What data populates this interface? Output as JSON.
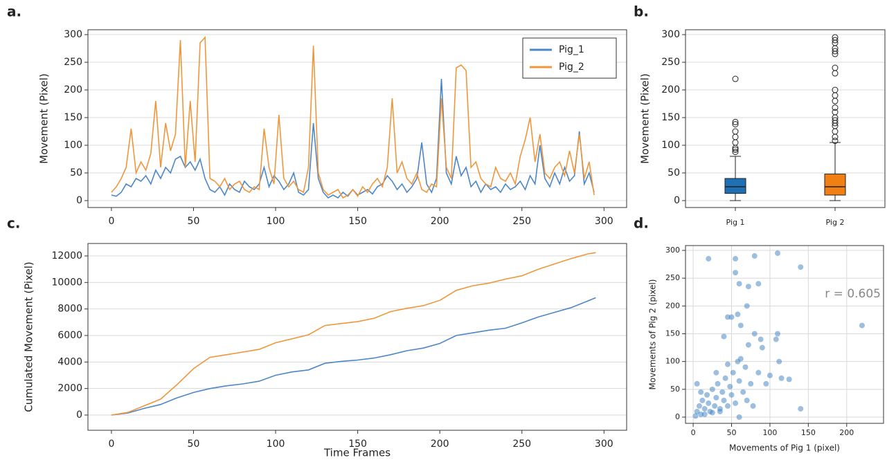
{
  "chart_data": [
    {
      "type": "line",
      "label": "a.",
      "ylabel": "Movement (Pixel)",
      "legend": "upper right",
      "grid": "y",
      "xlim": [
        -14.3,
        313.8
      ],
      "ylim": [
        -12.5,
        308.8
      ],
      "xticks": [
        0,
        50,
        100,
        150,
        200,
        250,
        300
      ],
      "yticks": [
        0,
        50,
        100,
        150,
        200,
        250,
        300
      ],
      "x": [
        0,
        3,
        6,
        9,
        12,
        15,
        18,
        21,
        24,
        27,
        30,
        33,
        36,
        39,
        42,
        45,
        48,
        51,
        54,
        57,
        60,
        63,
        66,
        69,
        72,
        75,
        78,
        81,
        84,
        87,
        90,
        93,
        96,
        99,
        102,
        105,
        108,
        111,
        114,
        117,
        120,
        123,
        126,
        129,
        132,
        135,
        138,
        141,
        144,
        147,
        150,
        153,
        156,
        159,
        162,
        165,
        168,
        171,
        174,
        177,
        180,
        183,
        186,
        189,
        192,
        195,
        198,
        201,
        204,
        207,
        210,
        213,
        216,
        219,
        222,
        225,
        228,
        231,
        234,
        237,
        240,
        243,
        246,
        249,
        252,
        255,
        258,
        261,
        264,
        267,
        270,
        273,
        276,
        279,
        282,
        285,
        288,
        291,
        294
      ],
      "series": [
        {
          "name": "Pig_1",
          "color": "#4a86c8",
          "values": [
            10,
            8,
            15,
            30,
            25,
            40,
            35,
            45,
            30,
            55,
            40,
            60,
            50,
            75,
            80,
            60,
            70,
            55,
            75,
            40,
            20,
            15,
            25,
            10,
            30,
            20,
            15,
            35,
            25,
            20,
            30,
            60,
            25,
            45,
            35,
            20,
            30,
            50,
            15,
            10,
            20,
            140,
            40,
            15,
            5,
            10,
            5,
            15,
            8,
            20,
            10,
            15,
            20,
            12,
            25,
            30,
            45,
            35,
            20,
            30,
            15,
            25,
            40,
            105,
            30,
            15,
            40,
            220,
            50,
            30,
            80,
            45,
            60,
            25,
            35,
            15,
            30,
            20,
            25,
            15,
            30,
            20,
            25,
            35,
            20,
            45,
            30,
            100,
            40,
            25,
            50,
            30,
            60,
            35,
            45,
            125,
            30,
            50,
            15
          ]
        },
        {
          "name": "Pig_2",
          "color": "#f0963a",
          "values": [
            15,
            25,
            40,
            60,
            130,
            50,
            70,
            55,
            85,
            180,
            60,
            140,
            90,
            120,
            290,
            60,
            180,
            70,
            285,
            295,
            40,
            35,
            25,
            40,
            20,
            30,
            35,
            20,
            15,
            25,
            20,
            130,
            60,
            30,
            155,
            40,
            25,
            35,
            20,
            15,
            60,
            280,
            50,
            20,
            10,
            15,
            20,
            5,
            10,
            20,
            8,
            25,
            15,
            30,
            40,
            25,
            60,
            185,
            50,
            70,
            40,
            30,
            50,
            20,
            15,
            30,
            25,
            185,
            60,
            40,
            240,
            245,
            235,
            60,
            70,
            40,
            30,
            25,
            60,
            40,
            35,
            50,
            30,
            80,
            110,
            150,
            70,
            120,
            50,
            40,
            60,
            70,
            45,
            90,
            50,
            120,
            40,
            70,
            10
          ]
        }
      ]
    },
    {
      "type": "box",
      "label": "b.",
      "ylabel": "Movement (Pixel)",
      "grid": "y",
      "ylim": [
        -12.5,
        308.8
      ],
      "yticks": [
        0,
        50,
        100,
        150,
        200,
        250,
        300
      ],
      "categories": [
        "Pig 1",
        "Pig 2"
      ],
      "boxes": [
        {
          "color": "#1f6fb4",
          "whisker_low": 0,
          "q1": 13,
          "median": 25,
          "q3": 40,
          "whisker_high": 80,
          "outliers": [
            88,
            92,
            95,
            105,
            115,
            125,
            138,
            142,
            220
          ]
        },
        {
          "color": "#f07f14",
          "whisker_low": 0,
          "q1": 10,
          "median": 25,
          "q3": 48,
          "whisker_high": 105,
          "outliers": [
            108,
            115,
            125,
            135,
            140,
            145,
            150,
            160,
            168,
            180,
            190,
            200,
            230,
            240,
            265,
            270,
            275,
            285,
            290,
            295
          ]
        }
      ]
    },
    {
      "type": "line",
      "label": "c.",
      "xlabel": "Time Frames",
      "ylabel": "Cumulated Movement (Pixel)",
      "grid": "y",
      "xlim": [
        -14.3,
        313.8
      ],
      "ylim": [
        -1148,
        12939
      ],
      "xticks": [
        0,
        50,
        100,
        150,
        200,
        250,
        300
      ],
      "yticks": [
        0,
        2000,
        4000,
        6000,
        8000,
        10000,
        12000
      ],
      "x": [
        0,
        10,
        20,
        30,
        40,
        50,
        60,
        70,
        80,
        90,
        100,
        110,
        120,
        130,
        140,
        150,
        160,
        170,
        180,
        190,
        200,
        210,
        220,
        230,
        240,
        250,
        260,
        270,
        280,
        290,
        295
      ],
      "series": [
        {
          "name": "Pig_1",
          "color": "#4a86c8",
          "values": [
            0,
            150,
            500,
            800,
            1300,
            1700,
            2000,
            2200,
            2350,
            2550,
            3000,
            3250,
            3400,
            3900,
            4050,
            4150,
            4300,
            4550,
            4850,
            5050,
            5400,
            6000,
            6200,
            6400,
            6550,
            6950,
            7400,
            7750,
            8100,
            8600,
            8850
          ]
        },
        {
          "name": "Pig_2",
          "color": "#f0963a",
          "values": [
            0,
            200,
            700,
            1200,
            2300,
            3500,
            4350,
            4550,
            4750,
            4950,
            5450,
            5750,
            6050,
            6750,
            6900,
            7050,
            7300,
            7800,
            8050,
            8250,
            8650,
            9400,
            9750,
            9950,
            10250,
            10500,
            11000,
            11400,
            11800,
            12150,
            12250
          ]
        }
      ]
    },
    {
      "type": "scatter",
      "label": "d.",
      "xlabel": "Movements of Pig 1 (pixel)",
      "ylabel": "Movements of Pig 2 (pixel)",
      "annotation": "r = 0.605",
      "grid": "both",
      "color": "#3a7dc0",
      "xlim": [
        -10,
        248
      ],
      "ylim": [
        -11.2,
        308.7
      ],
      "xticks": [
        0,
        50,
        100,
        150,
        200
      ],
      "yticks": [
        0,
        50,
        100,
        150,
        200,
        250,
        300
      ],
      "x": [
        5,
        8,
        10,
        12,
        15,
        18,
        20,
        22,
        25,
        28,
        30,
        32,
        35,
        38,
        40,
        42,
        45,
        48,
        50,
        52,
        55,
        58,
        60,
        62,
        65,
        68,
        70,
        72,
        75,
        78,
        80,
        85,
        88,
        90,
        95,
        100,
        110,
        112,
        115,
        125,
        140,
        220,
        20,
        50,
        55,
        60,
        58,
        62,
        70,
        72,
        85,
        80,
        110,
        140,
        55,
        40,
        45,
        108,
        3,
        15,
        25,
        35,
        10,
        30,
        45,
        60,
        5
      ],
      "y": [
        10,
        20,
        5,
        30,
        15,
        40,
        25,
        10,
        50,
        20,
        35,
        60,
        15,
        45,
        30,
        70,
        20,
        55,
        40,
        80,
        25,
        100,
        65,
        105,
        45,
        90,
        30,
        130,
        60,
        20,
        150,
        80,
        140,
        125,
        60,
        75,
        150,
        100,
        70,
        68,
        15,
        165,
        285,
        180,
        260,
        240,
        185,
        165,
        200,
        235,
        240,
        290,
        295,
        270,
        285,
        145,
        180,
        140,
        2,
        5,
        8,
        10,
        45,
        80,
        95,
        0,
        60
      ]
    }
  ]
}
